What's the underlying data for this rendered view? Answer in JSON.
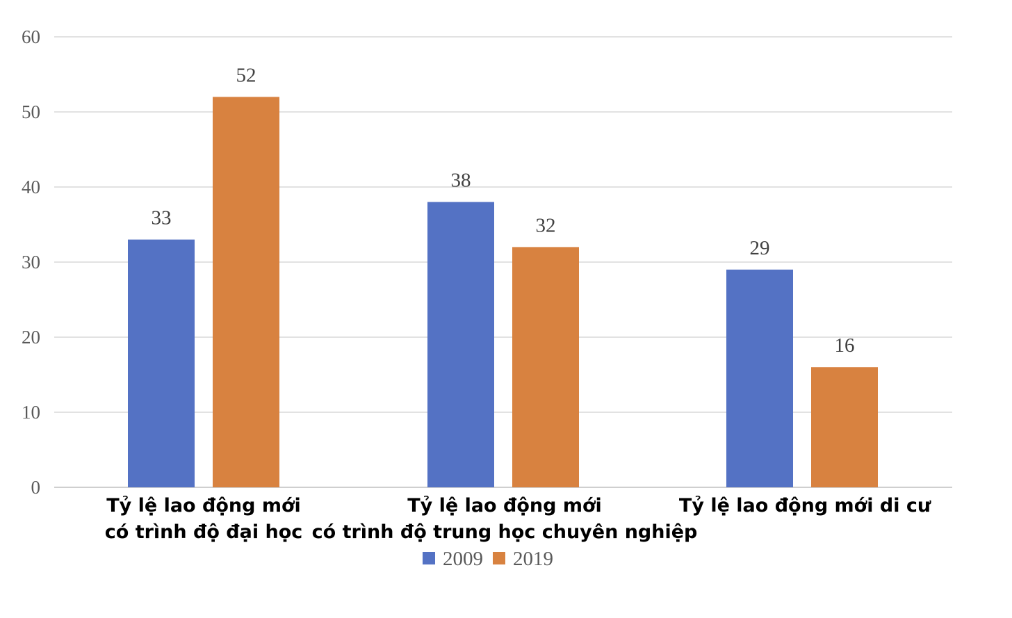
{
  "chart_data": {
    "type": "bar",
    "categories": [
      [
        "Tỷ lệ lao động mới",
        "có trình độ đại học"
      ],
      [
        "Tỷ lệ lao động mới",
        "có trình độ trung học chuyên nghiệp"
      ],
      [
        "Tỷ lệ lao động mới di cư"
      ]
    ],
    "series": [
      {
        "name": "2009",
        "color": "#5472C4",
        "values": [
          33,
          38,
          29
        ]
      },
      {
        "name": "2019",
        "color": "#D88240",
        "values": [
          52,
          32,
          16
        ]
      }
    ],
    "ylim": [
      0,
      60
    ],
    "yticks": [
      0,
      10,
      20,
      30,
      40,
      50,
      60
    ],
    "grid": true,
    "gridColor": "#d9d9d9",
    "legend_position": "bottom"
  }
}
